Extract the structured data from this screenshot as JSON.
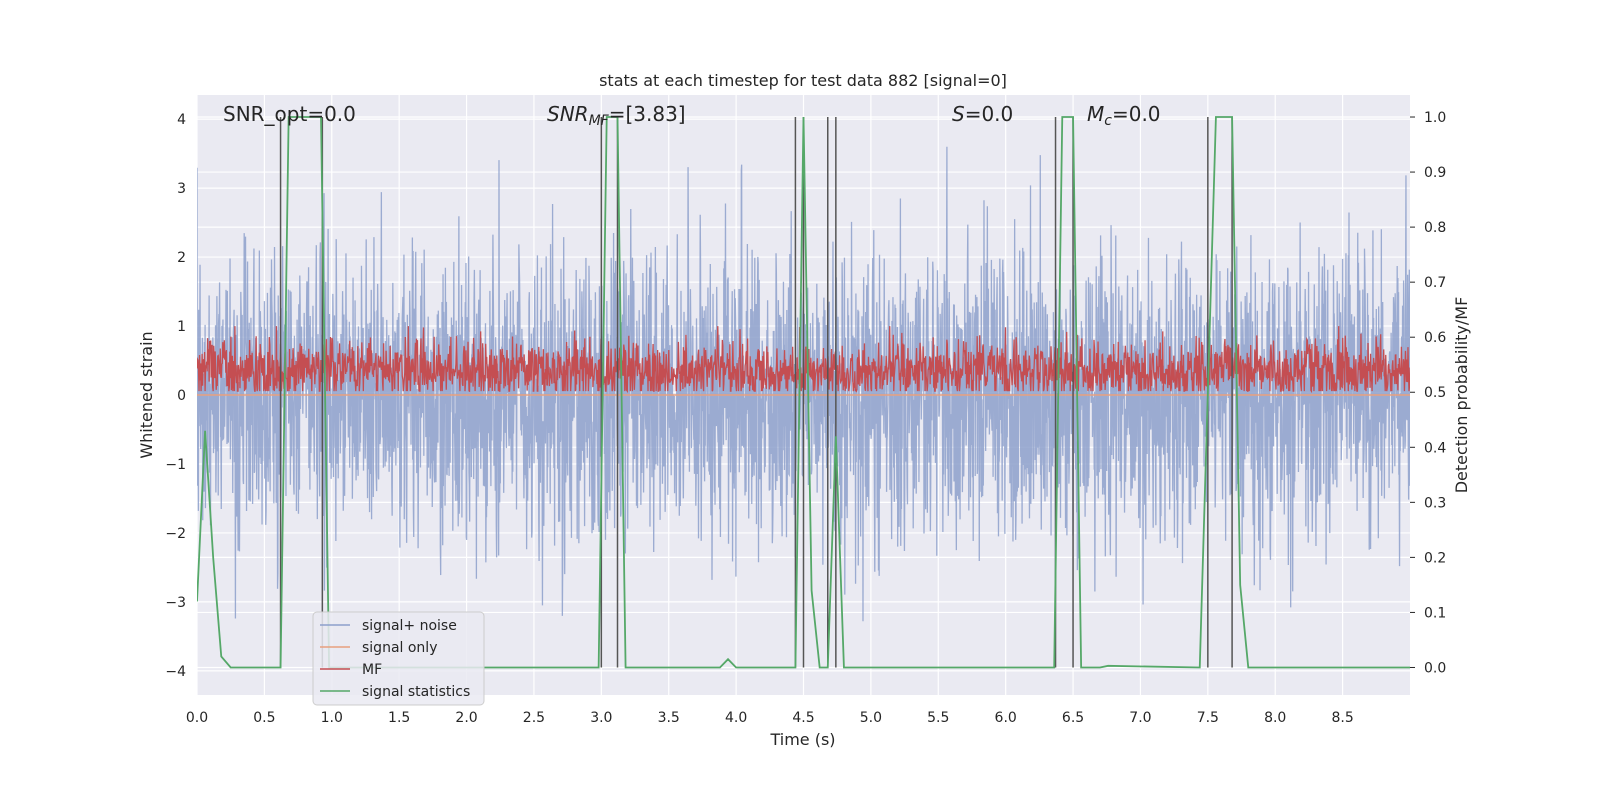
{
  "chart_data": {
    "type": "line",
    "title": "stats at each timestep for test data 882 [signal=0]",
    "xlabel": "Time (s)",
    "ylabel": "Whitened strain",
    "ylabel_right": "Detection probability/MF",
    "xlim": [
      0.0,
      9.0
    ],
    "ylim_left": [
      -4.35,
      4.35
    ],
    "ylim_right": [
      -0.05,
      1.04
    ],
    "x_ticks": [
      "0.0",
      "0.5",
      "1.0",
      "1.5",
      "2.0",
      "2.5",
      "3.0",
      "3.5",
      "4.0",
      "4.5",
      "5.0",
      "5.5",
      "6.0",
      "6.5",
      "7.0",
      "7.5",
      "8.0",
      "8.5"
    ],
    "y_ticks_left": [
      "4",
      "3",
      "2",
      "1",
      "0",
      "−1",
      "−2",
      "−3",
      "−4"
    ],
    "y_ticks_right": [
      "1.0",
      "0.9",
      "0.8",
      "0.7",
      "0.6",
      "0.5",
      "0.4",
      "0.3",
      "0.2",
      "0.1",
      "0.0"
    ],
    "grid": true,
    "legend_position": "lower-left",
    "annotations": {
      "snr_opt": "SNR_opt=0.0",
      "snr_mf_main": "SNR",
      "snr_mf_sub": "MF",
      "snr_mf_value": "=[3.83]",
      "s_main": "S",
      "s_value": "=0.0",
      "mc_main": "M",
      "mc_sub": "c",
      "mc_value": "=0.0"
    },
    "series": [
      {
        "name": "signal+ noise",
        "color": "#8da0cb",
        "axis": "left",
        "description": "whitened strain noise, amplitude mostly within -2.5 to 2.5, peaks near -3.5 to 3.5"
      },
      {
        "name": "signal only",
        "color": "#e8a07e",
        "axis": "left",
        "values": "flat at 0"
      },
      {
        "name": "MF",
        "color": "#c44e52",
        "axis": "right",
        "description": "matched filter output oscillating roughly between 0.5 and 0.6"
      },
      {
        "name": "signal statistics",
        "color": "#55a868",
        "axis": "right",
        "x": [
          0.0,
          0.06,
          0.12,
          0.18,
          0.25,
          0.62,
          0.68,
          0.92,
          0.98,
          2.98,
          3.04,
          3.12,
          3.18,
          3.88,
          3.94,
          4.0,
          4.44,
          4.5,
          4.56,
          4.62,
          4.68,
          4.74,
          4.8,
          6.36,
          6.42,
          6.5,
          6.56,
          6.7,
          6.76,
          7.44,
          7.56,
          7.68,
          7.74,
          7.8,
          9.0
        ],
        "values": [
          0.12,
          0.43,
          0.2,
          0.02,
          0.0,
          0.0,
          1.0,
          1.0,
          0.0,
          0.0,
          1.0,
          1.0,
          0.0,
          0.0,
          0.015,
          0.0,
          0.0,
          1.0,
          0.14,
          0.0,
          0.0,
          0.42,
          0.0,
          0.0,
          1.0,
          1.0,
          0.0,
          0.0,
          0.003,
          0.0,
          1.0,
          1.0,
          0.15,
          0.0,
          0.0
        ]
      }
    ],
    "vertical_markers": [
      0.62,
      0.93,
      3.0,
      3.12,
      4.44,
      4.5,
      4.68,
      4.74,
      6.37,
      6.5,
      7.5,
      7.68
    ]
  }
}
